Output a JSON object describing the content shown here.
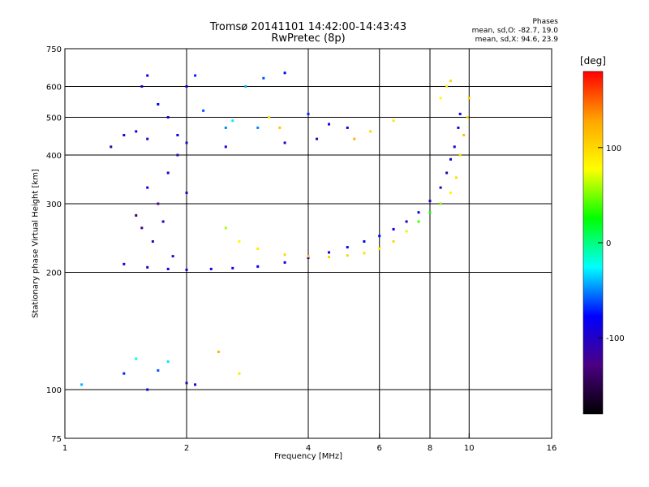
{
  "chart_data": {
    "type": "scatter",
    "title": "Tromsø 20141101 14:42:00-14:43:43",
    "subtitle": "RwPretec (8p)",
    "stats": {
      "title": "Phases",
      "line_o": "mean, sd,O: -82.7, 19.0",
      "line_x": "mean, sd,X:  94.6, 23.9"
    },
    "xlabel": "Frequency [MHz]",
    "ylabel": "Stationary phase Virtual Height [km]",
    "x_scale": "log",
    "y_scale": "log",
    "xlim": [
      1,
      16
    ],
    "ylim": [
      75,
      750
    ],
    "xticks": [
      1,
      2,
      4,
      6,
      8,
      10,
      16
    ],
    "yticks": [
      75,
      100,
      200,
      300,
      400,
      500,
      600,
      750
    ],
    "grid_x": [
      2,
      4,
      6,
      8,
      10
    ],
    "grid_y": [
      100,
      200,
      300,
      400,
      500,
      600
    ],
    "colorbar": {
      "label": "[deg]",
      "ticks": [
        100,
        0,
        -100
      ],
      "range": [
        -180,
        180
      ],
      "colors": [
        "#000000",
        "#4b0082",
        "#0000ff",
        "#00ffff",
        "#00ff00",
        "#ffff00",
        "#ffa500",
        "#ff0000"
      ]
    },
    "series": [
      {
        "points": [
          [
            1.3,
            420,
            -110
          ],
          [
            1.4,
            450,
            -100
          ],
          [
            1.5,
            460,
            -90
          ],
          [
            1.55,
            600,
            -100
          ],
          [
            1.6,
            640,
            -90
          ],
          [
            1.7,
            540,
            -80
          ],
          [
            1.8,
            500,
            -95
          ],
          [
            1.9,
            450,
            -85
          ],
          [
            2.0,
            600,
            -90
          ],
          [
            2.1,
            640,
            -70
          ],
          [
            2.2,
            520,
            -60
          ],
          [
            2.5,
            470,
            -50
          ],
          [
            2.8,
            600,
            -40
          ],
          [
            3.1,
            630,
            -60
          ],
          [
            3.5,
            650,
            -80
          ],
          [
            2.6,
            490,
            -30
          ],
          [
            3.0,
            470,
            -50
          ],
          [
            4.0,
            510,
            -70
          ],
          [
            4.5,
            480,
            -90
          ],
          [
            5.0,
            470,
            -80
          ],
          [
            1.6,
            440,
            -100
          ],
          [
            2.0,
            430,
            -95
          ],
          [
            2.5,
            420,
            -90
          ],
          [
            3.5,
            430,
            -100
          ],
          [
            4.2,
            440,
            -110
          ],
          [
            1.55,
            260,
            -120
          ],
          [
            1.65,
            240,
            -110
          ],
          [
            1.75,
            270,
            -100
          ],
          [
            1.85,
            220,
            -105
          ],
          [
            1.7,
            300,
            -125
          ],
          [
            1.5,
            280,
            -140
          ],
          [
            1.6,
            330,
            -90
          ],
          [
            1.8,
            360,
            -95
          ],
          [
            1.9,
            400,
            -110
          ],
          [
            2.0,
            320,
            -100
          ],
          [
            1.4,
            210,
            -100
          ],
          [
            1.6,
            206,
            -100
          ],
          [
            1.8,
            204,
            -95
          ],
          [
            2.0,
            203,
            -90
          ],
          [
            2.3,
            204,
            -90
          ],
          [
            2.6,
            205,
            -85
          ],
          [
            3.0,
            207,
            -80
          ],
          [
            3.5,
            212,
            -85
          ],
          [
            4.0,
            218,
            -90
          ],
          [
            4.5,
            225,
            -90
          ],
          [
            5.0,
            232,
            -85
          ],
          [
            5.5,
            240,
            -80
          ],
          [
            6.0,
            248,
            -75
          ],
          [
            6.5,
            258,
            -85
          ],
          [
            7.0,
            270,
            -90
          ],
          [
            7.5,
            285,
            -95
          ],
          [
            8.0,
            305,
            -100
          ],
          [
            8.5,
            330,
            -105
          ],
          [
            8.8,
            360,
            -110
          ],
          [
            9.0,
            390,
            -100
          ],
          [
            9.2,
            420,
            -95
          ],
          [
            9.4,
            470,
            -90
          ],
          [
            9.5,
            510,
            -85
          ],
          [
            1.1,
            103,
            -40
          ],
          [
            1.5,
            120,
            -20
          ],
          [
            1.7,
            112,
            -60
          ],
          [
            1.8,
            118,
            -30
          ],
          [
            2.0,
            104,
            -100
          ],
          [
            2.1,
            103,
            -90
          ],
          [
            1.4,
            110,
            -70
          ],
          [
            1.6,
            100,
            -80
          ]
        ]
      },
      {
        "points": [
          [
            2.5,
            260,
            60
          ],
          [
            2.7,
            240,
            80
          ],
          [
            3.0,
            230,
            90
          ],
          [
            3.5,
            222,
            100
          ],
          [
            4.0,
            220,
            110
          ],
          [
            4.5,
            219,
            105
          ],
          [
            5.0,
            221,
            100
          ],
          [
            5.5,
            224,
            95
          ],
          [
            6.0,
            230,
            90
          ],
          [
            6.5,
            240,
            100
          ],
          [
            7.0,
            255,
            70
          ],
          [
            7.5,
            270,
            40
          ],
          [
            8.0,
            285,
            30
          ],
          [
            8.5,
            300,
            50
          ],
          [
            9.0,
            320,
            80
          ],
          [
            9.3,
            350,
            95
          ],
          [
            9.5,
            400,
            100
          ],
          [
            9.7,
            450,
            110
          ],
          [
            9.9,
            500,
            105
          ],
          [
            10.0,
            560,
            100
          ],
          [
            8.5,
            560,
            80
          ],
          [
            8.8,
            600,
            90
          ],
          [
            9.0,
            620,
            100
          ],
          [
            3.2,
            500,
            90
          ],
          [
            3.4,
            470,
            110
          ],
          [
            5.2,
            440,
            120
          ],
          [
            5.7,
            460,
            100
          ],
          [
            6.5,
            490,
            90
          ],
          [
            2.4,
            125,
            120
          ],
          [
            2.7,
            110,
            90
          ]
        ]
      }
    ]
  }
}
